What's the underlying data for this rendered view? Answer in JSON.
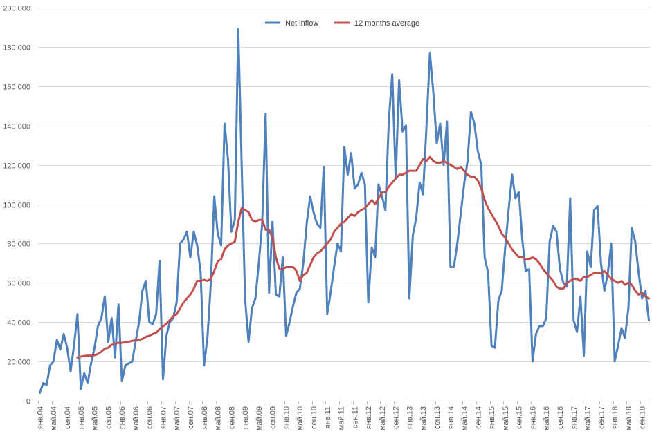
{
  "chart_data": {
    "type": "line",
    "title": "",
    "xlabel": "",
    "ylabel": "",
    "frequency": "monthly",
    "tick_labels": [
      "янв.04",
      "май.04",
      "сен.04",
      "янв.05",
      "май.05",
      "сен.05",
      "янв.06",
      "май.06",
      "сен.06",
      "янв.07",
      "май.07",
      "сен.07",
      "янв.08",
      "май.08",
      "сен.08",
      "янв.09",
      "май.09",
      "сен.09",
      "янв.10",
      "май.10",
      "сен.10",
      "янв.11",
      "май.11",
      "сен.11",
      "янв.12",
      "май.12",
      "сен.12",
      "янв.13",
      "май.13",
      "сен.13",
      "янв.14",
      "май.14",
      "сен.14",
      "янв.15",
      "май.15",
      "сен.15",
      "янв.16",
      "май.16",
      "сен.16",
      "янв.17",
      "май.17",
      "сен.17",
      "янв.18",
      "май.18",
      "сен.18"
    ],
    "ylim": [
      0,
      200000
    ],
    "y_ticks": [
      "0",
      "20 000",
      "40 000",
      "60 000",
      "80 000",
      "100 000",
      "120 000",
      "140 000",
      "160 000",
      "180 000",
      "200 000"
    ],
    "y_tick_values": [
      0,
      20000,
      40000,
      60000,
      80000,
      100000,
      120000,
      140000,
      160000,
      180000,
      200000
    ],
    "grid": "horizontal",
    "legend_position": "top-center",
    "series": [
      {
        "name": "Net inflow",
        "color": "#4F81BD",
        "values": [
          4000,
          9000,
          8000,
          18000,
          20000,
          31000,
          26000,
          34000,
          27000,
          15000,
          28000,
          44000,
          6000,
          14000,
          9000,
          19000,
          27000,
          38000,
          42000,
          53000,
          30000,
          42000,
          22000,
          49000,
          10000,
          18000,
          19000,
          20000,
          30000,
          40000,
          56000,
          61000,
          40000,
          39000,
          44000,
          71000,
          11000,
          33000,
          40000,
          42000,
          50000,
          80000,
          82000,
          86000,
          73000,
          86000,
          79000,
          66000,
          18000,
          32000,
          60000,
          104000,
          85000,
          79000,
          141000,
          123000,
          86000,
          92000,
          189000,
          120000,
          52000,
          30000,
          47000,
          52000,
          70000,
          90000,
          146000,
          55000,
          91000,
          54000,
          53000,
          73000,
          33000,
          40000,
          48000,
          55000,
          57000,
          70000,
          90000,
          104000,
          96000,
          90000,
          88000,
          119000,
          44000,
          55000,
          68000,
          80000,
          76000,
          129000,
          115000,
          126000,
          108000,
          110000,
          116000,
          110000,
          50000,
          78000,
          73000,
          110000,
          104000,
          97000,
          143000,
          166000,
          113000,
          163000,
          137000,
          140000,
          52000,
          84000,
          93000,
          111000,
          105000,
          140000,
          177000,
          157000,
          131000,
          141000,
          120000,
          142000,
          68000,
          68000,
          80000,
          95000,
          110000,
          122000,
          147000,
          141000,
          127000,
          120000,
          73000,
          65000,
          28000,
          27000,
          51000,
          56000,
          78000,
          97000,
          115000,
          103000,
          106000,
          82000,
          66000,
          67000,
          20000,
          34000,
          38000,
          38000,
          42000,
          81000,
          89000,
          86000,
          67000,
          60000,
          58000,
          103000,
          41000,
          35000,
          53000,
          23000,
          76000,
          68000,
          97000,
          99000,
          70000,
          56000,
          65000,
          80000,
          20000,
          28000,
          37000,
          32000,
          47000,
          88000,
          81000,
          65000,
          52000,
          56000,
          41000
        ]
      },
      {
        "name": "12 months average",
        "color": "#C0504D",
        "values": [
          null,
          null,
          null,
          null,
          null,
          null,
          null,
          null,
          null,
          null,
          null,
          22000,
          22500,
          22800,
          23000,
          23000,
          23200,
          23800,
          25000,
          26500,
          27000,
          28500,
          29000,
          29500,
          29500,
          29800,
          30000,
          30500,
          30800,
          31000,
          31500,
          32500,
          33000,
          34000,
          34500,
          36500,
          38000,
          39000,
          41000,
          43000,
          44000,
          47000,
          50000,
          52000,
          54000,
          57000,
          61000,
          61000,
          61500,
          61000,
          62000,
          66000,
          71000,
          72000,
          77000,
          79000,
          80000,
          81000,
          91000,
          98000,
          97000,
          96000,
          92000,
          91000,
          92000,
          92000,
          87000,
          87000,
          83000,
          73000,
          67000,
          67000,
          68000,
          68000,
          68000,
          66000,
          61000,
          64000,
          65000,
          69000,
          73000,
          75000,
          76000,
          78000,
          80000,
          82000,
          86000,
          88000,
          90000,
          91000,
          93000,
          95000,
          94000,
          96000,
          97000,
          98000,
          100000,
          102000,
          100000,
          103000,
          106000,
          106000,
          109000,
          111000,
          113000,
          115000,
          115000,
          116000,
          117000,
          117000,
          117000,
          120000,
          123000,
          122000,
          124000,
          122000,
          121000,
          121000,
          122000,
          121000,
          120000,
          119000,
          118000,
          119000,
          117000,
          115000,
          114000,
          114000,
          112000,
          108000,
          102000,
          98000,
          95000,
          92000,
          89000,
          85000,
          83000,
          80000,
          77000,
          75000,
          73000,
          73000,
          72000,
          72000,
          73000,
          72000,
          70000,
          67000,
          65000,
          63000,
          61000,
          58000,
          57000,
          57000,
          60000,
          61000,
          62000,
          62000,
          61000,
          63000,
          63000,
          64000,
          65000,
          65000,
          65000,
          66000,
          64000,
          62000,
          61000,
          60000,
          61000,
          59000,
          60000,
          59000,
          56000,
          54000,
          55000,
          53000,
          52000
        ]
      }
    ],
    "colors": {
      "grid": "#D9D9D9",
      "axis": "#BFBFBF"
    }
  }
}
